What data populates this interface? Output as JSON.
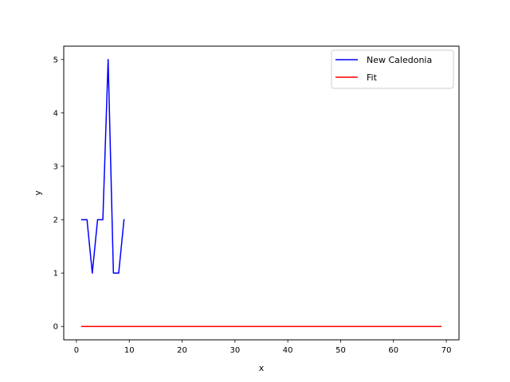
{
  "chart_data": {
    "type": "line",
    "title": "",
    "xlabel": "x",
    "ylabel": "y",
    "xlim": [
      -2.4,
      72.4
    ],
    "ylim": [
      -0.25,
      5.25
    ],
    "xticks": [
      0,
      10,
      20,
      30,
      40,
      50,
      60,
      70
    ],
    "yticks": [
      0,
      1,
      2,
      3,
      4,
      5
    ],
    "grid": false,
    "legend_position": "top-right",
    "series": [
      {
        "name": "New Caledonia",
        "color": "#0000ff",
        "x": [
          1,
          2,
          3,
          4,
          5,
          6,
          7,
          8,
          9
        ],
        "y": [
          2,
          2,
          1,
          2,
          2,
          5,
          1,
          1,
          2
        ]
      },
      {
        "name": "Fit",
        "color": "#ff0000",
        "x": [
          1,
          69
        ],
        "y": [
          0,
          0
        ]
      }
    ]
  }
}
